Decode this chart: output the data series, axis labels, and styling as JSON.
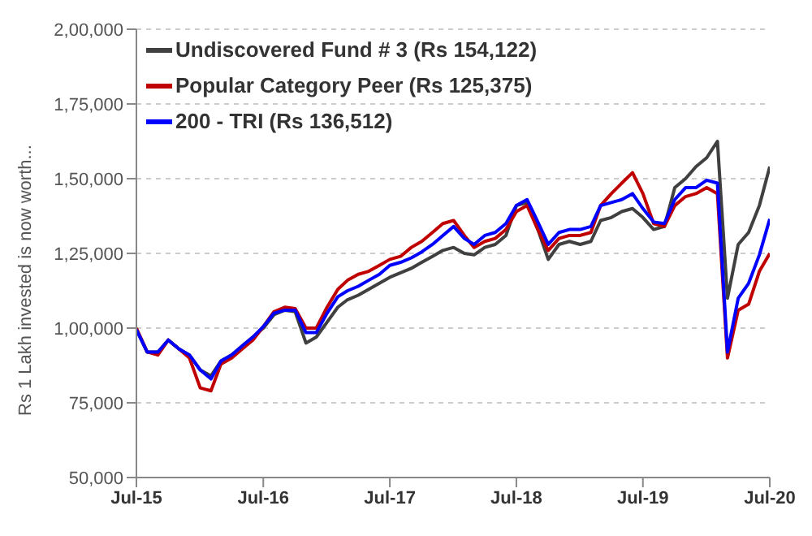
{
  "chart_data": {
    "type": "line",
    "ylabel": "Rs 1 Lakh invested is now worth...",
    "x": [
      "2015-07",
      "2015-08",
      "2015-09",
      "2015-10",
      "2015-11",
      "2015-12",
      "2016-01",
      "2016-02",
      "2016-03",
      "2016-04",
      "2016-05",
      "2016-06",
      "2016-07",
      "2016-08",
      "2016-09",
      "2016-10",
      "2016-11",
      "2016-12",
      "2017-01",
      "2017-02",
      "2017-03",
      "2017-04",
      "2017-05",
      "2017-06",
      "2017-07",
      "2017-08",
      "2017-09",
      "2017-10",
      "2017-11",
      "2017-12",
      "2018-01",
      "2018-02",
      "2018-03",
      "2018-04",
      "2018-05",
      "2018-06",
      "2018-07",
      "2018-08",
      "2018-09",
      "2018-10",
      "2018-11",
      "2018-12",
      "2019-01",
      "2019-02",
      "2019-03",
      "2019-04",
      "2019-05",
      "2019-06",
      "2019-07",
      "2019-08",
      "2019-09",
      "2019-10",
      "2019-11",
      "2019-12",
      "2020-01",
      "2020-02",
      "2020-03",
      "2020-04",
      "2020-05",
      "2020-06",
      "2020-07"
    ],
    "series": [
      {
        "name": "Undiscovered Fund # 3 (Rs 154,122)",
        "color": "#404040",
        "values": [
          99500,
          92000,
          92000,
          96000,
          93000,
          91000,
          86000,
          84000,
          89000,
          91000,
          94000,
          97000,
          100000,
          104500,
          106000,
          105500,
          95000,
          97000,
          102000,
          107000,
          109500,
          111000,
          113000,
          115000,
          117000,
          118500,
          120000,
          122000,
          124000,
          126000,
          127000,
          125000,
          124500,
          127000,
          128000,
          131000,
          141000,
          142000,
          133000,
          123000,
          128000,
          129000,
          128000,
          129000,
          136000,
          137000,
          139000,
          140000,
          137000,
          133000,
          134000,
          147000,
          150000,
          154000,
          157000,
          162500,
          110000,
          128000,
          132000,
          141000,
          154000
        ]
      },
      {
        "name": "Popular Category Peer (Rs 125,375)",
        "color": "#c00000",
        "values": [
          100000,
          92000,
          91000,
          96000,
          93000,
          90000,
          80000,
          79000,
          88000,
          90000,
          93000,
          96000,
          100500,
          105500,
          107000,
          106500,
          100000,
          100000,
          107000,
          113000,
          116000,
          118000,
          119000,
          121000,
          123000,
          124000,
          127000,
          129000,
          132000,
          135000,
          136000,
          131000,
          127000,
          129000,
          130000,
          133000,
          139000,
          141000,
          133000,
          126000,
          130000,
          131000,
          131000,
          132000,
          141000,
          145000,
          148500,
          152000,
          145000,
          135000,
          134000,
          141000,
          144000,
          145000,
          147000,
          145000,
          90000,
          106000,
          108000,
          119000,
          125000
        ]
      },
      {
        "name": "200 - TRI (Rs 136,512)",
        "color": "#0000ff",
        "values": [
          99500,
          92000,
          92000,
          96000,
          93000,
          91000,
          86000,
          83000,
          89000,
          91000,
          94000,
          97000,
          100500,
          105000,
          106000,
          106000,
          98500,
          98500,
          105000,
          110500,
          112500,
          114000,
          116000,
          118000,
          121000,
          122000,
          123500,
          125500,
          128000,
          131000,
          134000,
          130000,
          128000,
          131000,
          132000,
          135000,
          141000,
          143000,
          135500,
          128000,
          132000,
          133000,
          133000,
          134000,
          141000,
          142000,
          143000,
          145000,
          140000,
          135500,
          135000,
          143000,
          147000,
          147000,
          149500,
          148500,
          92000,
          110000,
          115000,
          124500,
          136500
        ]
      }
    ],
    "xlim": [
      "2015-07",
      "2020-07"
    ],
    "xticks": [
      {
        "value": "2015-07",
        "label": "Jul-15"
      },
      {
        "value": "2016-07",
        "label": "Jul-16"
      },
      {
        "value": "2017-07",
        "label": "Jul-17"
      },
      {
        "value": "2018-07",
        "label": "Jul-18"
      },
      {
        "value": "2019-07",
        "label": "Jul-19"
      },
      {
        "value": "2020-07",
        "label": "Jul-20"
      }
    ],
    "ylim": [
      50000,
      200000
    ],
    "yticks": [
      {
        "value": 50000,
        "label": "50,000"
      },
      {
        "value": 75000,
        "label": "75,000"
      },
      {
        "value": 100000,
        "label": "1,00,000"
      },
      {
        "value": 125000,
        "label": "1,25,000"
      },
      {
        "value": 150000,
        "label": "1,50,000"
      },
      {
        "value": 175000,
        "label": "1,75,000"
      },
      {
        "value": 200000,
        "label": "2,00,000"
      }
    ],
    "grid": "y",
    "legend": "top left",
    "marker": "none",
    "line_style": "solid"
  }
}
